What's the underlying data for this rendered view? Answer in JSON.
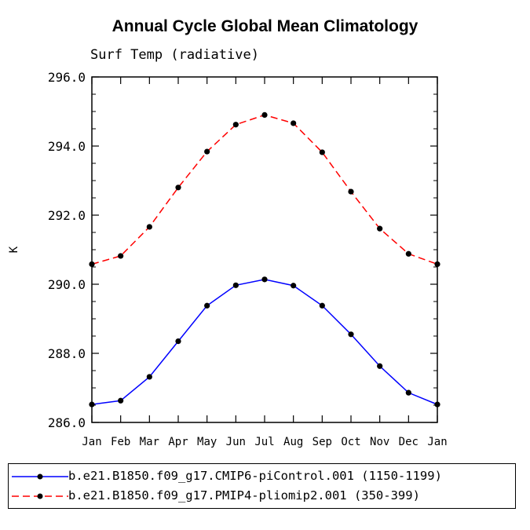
{
  "chart_data": {
    "type": "line",
    "title": "Annual Cycle Global Mean Climatology",
    "subtitle": "Surf Temp (radiative)",
    "xlabel": "",
    "ylabel": "K",
    "categories": [
      "Jan",
      "Feb",
      "Mar",
      "Apr",
      "May",
      "Jun",
      "Jul",
      "Aug",
      "Sep",
      "Oct",
      "Nov",
      "Dec",
      "Jan"
    ],
    "ylim": [
      286.0,
      296.0
    ],
    "yticks": [
      "286.0",
      "288.0",
      "290.0",
      "292.0",
      "294.0",
      "296.0"
    ],
    "series": [
      {
        "name": "b.e21.B1850.f09_g17.CMIP6-piControl.001 (1150-1199)",
        "color": "#0000ff",
        "dash": "solid",
        "values": [
          286.52,
          286.63,
          287.32,
          288.35,
          289.38,
          289.97,
          290.14,
          289.96,
          289.38,
          288.55,
          287.63,
          286.86,
          286.52
        ]
      },
      {
        "name": "b.e21.B1850.f09_g17.PMIP4-pliomip2.001 (350-399)",
        "color": "#ff0000",
        "dash": "dashed",
        "values": [
          290.58,
          290.82,
          291.66,
          292.8,
          293.84,
          294.62,
          294.9,
          294.66,
          293.82,
          292.68,
          291.61,
          290.88,
          290.58
        ]
      }
    ],
    "legend_position": "bottom"
  }
}
